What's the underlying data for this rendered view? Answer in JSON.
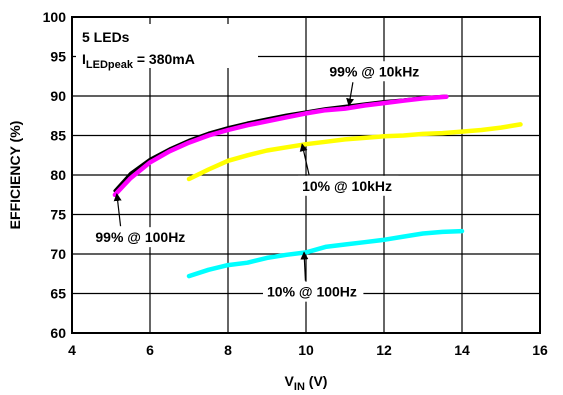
{
  "chart_data": {
    "type": "line",
    "title": "",
    "xlabel": {
      "main": "V",
      "sub": "IN",
      "unit": " (V)"
    },
    "ylabel": "EFFICIENCY (%)",
    "xlim": [
      4,
      16
    ],
    "ylim": [
      60,
      100
    ],
    "xticks": [
      4,
      6,
      8,
      10,
      12,
      14,
      16
    ],
    "yticks": [
      60,
      65,
      70,
      75,
      80,
      85,
      90,
      95,
      100
    ],
    "grid": true,
    "legend": "none",
    "conditions": {
      "line1": "5 LEDs",
      "line2_main": "I",
      "line2_sub": "LEDpeak",
      "line2_rest": " = 380mA"
    },
    "series": [
      {
        "name": "99% @ 10kHz",
        "color": "#000000",
        "x": [
          5.1,
          5.5,
          6.0,
          6.5,
          7.0,
          7.5,
          8.0,
          8.5,
          9.0,
          9.5,
          10.0,
          10.5,
          11.0,
          11.5,
          12.0,
          12.5,
          13.0,
          13.6
        ],
        "y": [
          78.0,
          80.2,
          82.0,
          83.3,
          84.4,
          85.3,
          86.0,
          86.6,
          87.1,
          87.6,
          88.0,
          88.4,
          88.7,
          89.0,
          89.3,
          89.5,
          89.8,
          90.0
        ]
      },
      {
        "name": "99% @ 100Hz",
        "color": "#ff00ff",
        "x": [
          5.1,
          5.5,
          6.0,
          6.5,
          7.0,
          7.5,
          8.0,
          8.5,
          9.0,
          9.5,
          10.0,
          10.5,
          11.0,
          11.5,
          12.0,
          12.5,
          13.0,
          13.6
        ],
        "y": [
          77.5,
          79.6,
          81.6,
          83.0,
          84.1,
          85.0,
          85.7,
          86.3,
          86.8,
          87.3,
          87.8,
          88.2,
          88.4,
          88.8,
          89.1,
          89.4,
          89.7,
          89.9
        ]
      },
      {
        "name": "10% @ 10kHz",
        "color": "#ffff00",
        "x": [
          7.0,
          7.5,
          8.0,
          8.5,
          9.0,
          9.5,
          10.0,
          10.5,
          11.0,
          11.5,
          12.0,
          12.5,
          13.0,
          13.5,
          14.0,
          14.5,
          15.0,
          15.5
        ],
        "y": [
          79.5,
          80.7,
          81.8,
          82.5,
          83.1,
          83.5,
          83.9,
          84.2,
          84.5,
          84.7,
          84.9,
          85.0,
          85.2,
          85.3,
          85.5,
          85.7,
          86.0,
          86.4
        ]
      },
      {
        "name": "10% @ 100Hz",
        "color": "#00ffff",
        "x": [
          7.0,
          7.5,
          8.0,
          8.5,
          9.0,
          9.5,
          10.0,
          10.5,
          11.0,
          11.5,
          12.0,
          12.5,
          13.0,
          13.5,
          14.0
        ],
        "y": [
          67.2,
          68.0,
          68.6,
          68.9,
          69.5,
          69.9,
          70.2,
          70.9,
          71.2,
          71.5,
          71.8,
          72.2,
          72.6,
          72.8,
          72.9
        ]
      }
    ],
    "annotations": [
      {
        "text": "99% @ 10kHz",
        "label_x": 10.6,
        "label_y": 92.5,
        "arrow_x": 11.1,
        "arrow_y": 88.8
      },
      {
        "text": "10% @ 10kHz",
        "label_x": 9.9,
        "label_y": 78.0,
        "arrow_x": 9.9,
        "arrow_y": 83.9
      },
      {
        "text": "99% @ 100Hz",
        "label_x": 4.6,
        "label_y": 71.5,
        "arrow_x": 5.15,
        "arrow_y": 77.6
      },
      {
        "text": "10% @ 100Hz",
        "label_x": 9.0,
        "label_y": 64.6,
        "arrow_x": 9.95,
        "arrow_y": 70.2
      }
    ]
  }
}
